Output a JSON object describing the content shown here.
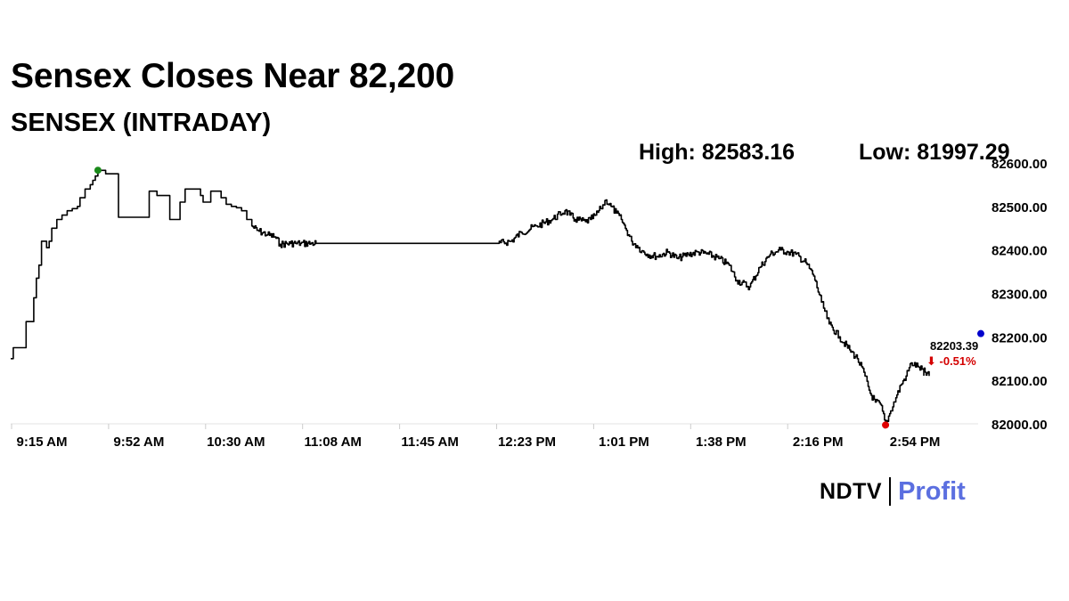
{
  "header": {
    "title": "Sensex Closes Near 82,200",
    "subtitle": "SENSEX (INTRADAY)"
  },
  "stats": {
    "high": "High: 82583.16",
    "low": "Low: 81997.29"
  },
  "last": {
    "price": "82203.39",
    "change": "⬇ -0.51%"
  },
  "brand": {
    "name": "NDTV",
    "product": "Profit"
  },
  "colors": {
    "line": "#000000",
    "high_marker": "#1a8a1a",
    "low_marker": "#e00000",
    "last_marker": "#0000cc",
    "negative": "#d40000",
    "profit": "#5b6fe0"
  },
  "chart_data": {
    "type": "line",
    "title": "Sensex Closes Near 82,200",
    "subtitle": "SENSEX (INTRADAY)",
    "xlabel": "",
    "ylabel": "",
    "ylim": [
      82000,
      82600
    ],
    "y_ticks": [
      "82600.00",
      "82500.00",
      "82400.00",
      "82300.00",
      "82200.00",
      "82100.00",
      "82000.00"
    ],
    "x_ticks": [
      "9:15 AM",
      "9:52 AM",
      "10:30 AM",
      "11:08 AM",
      "11:45 AM",
      "12:23 PM",
      "1:01 PM",
      "1:38 PM",
      "2:16 PM",
      "2:54 PM"
    ],
    "grid": false,
    "series": [
      {
        "x_minutes_after_open": [
          0,
          1,
          5,
          6,
          8,
          9,
          10,
          11,
          12,
          13,
          14,
          15,
          16,
          17,
          18,
          19,
          20,
          21,
          22,
          24,
          26,
          27,
          29,
          31,
          32,
          33,
          34,
          35,
          36,
          37,
          39,
          41,
          42,
          43,
          48,
          49,
          50,
          52,
          53,
          54,
          56,
          57,
          60,
          62,
          63,
          66,
          68,
          72,
          74,
          75,
          76,
          78,
          82,
          84,
          86,
          88,
          90,
          92,
          94,
          96,
          100,
          103,
          105,
          109,
          111,
          113,
          117,
          119,
          121,
          123,
          125,
          128,
          190,
          195,
          199,
          205,
          211,
          216,
          218,
          220,
          224,
          226,
          228,
          230,
          232,
          234,
          236,
          238,
          240,
          242,
          244,
          246,
          248,
          252,
          256,
          260,
          264,
          268,
          272,
          276,
          280,
          283,
          288,
          292,
          296,
          300,
          303,
          306,
          310,
          313,
          316,
          319,
          323,
          327,
          330,
          333,
          335,
          337,
          339,
          341,
          343,
          345,
          347,
          349,
          351,
          354,
          358
        ],
        "y": [
          82150,
          82175,
          82175,
          82235,
          82235,
          82290,
          82335,
          82365,
          82420,
          82420,
          82405,
          82420,
          82450,
          82450,
          82470,
          82470,
          82480,
          82480,
          82490,
          82495,
          82500,
          82520,
          82540,
          82550,
          82560,
          82570,
          82583,
          82583,
          82583,
          82575,
          82575,
          82575,
          82475,
          82475,
          82475,
          82475,
          82475,
          82475,
          82475,
          82535,
          82535,
          82525,
          82525,
          82470,
          82470,
          82510,
          82540,
          82540,
          82525,
          82510,
          82510,
          82535,
          82520,
          82505,
          82500,
          82497,
          82490,
          82470,
          82455,
          82445,
          82435,
          82430,
          82413,
          82415,
          82415,
          82415,
          82415,
          82415,
          82415,
          82415,
          82415,
          82415,
          82415,
          82420,
          82440,
          82455,
          82470,
          82490,
          82480,
          82470,
          82465,
          82470,
          82480,
          82495,
          82515,
          82500,
          82485,
          82470,
          82445,
          82420,
          82410,
          82398,
          82390,
          82385,
          82395,
          82380,
          82390,
          82395,
          82390,
          82380,
          82365,
          82330,
          82315,
          82360,
          82390,
          82400,
          82395,
          82390,
          82370,
          82340,
          82280,
          82230,
          82200,
          82170,
          82150,
          82110,
          82070,
          82050,
          82045,
          81998,
          82030,
          82060,
          82090,
          82110,
          82140,
          82130,
          82110
        ],
        "name": ""
      }
    ],
    "markers": {
      "high": 82583.16,
      "low": 81997.29,
      "last": 82203.39
    }
  }
}
